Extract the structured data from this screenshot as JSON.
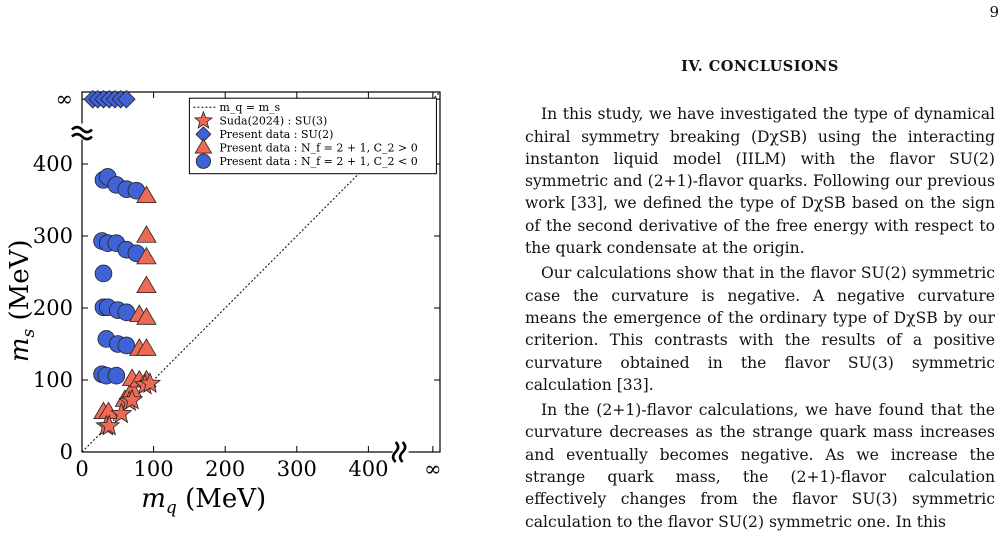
{
  "page_number": "9",
  "section_heading": "IV.   CONCLUSIONS",
  "paragraphs": [
    "In this study, we have investigated the type of dynamical chiral symmetry breaking (DχSB) using the interacting instanton liquid model (IILM) with the flavor SU(2) symmetric and (2+1)-flavor quarks. Following our previous work [33], we defined the type of DχSB based on the sign of the second derivative of the free energy with respect to the quark condensate at the origin.",
    "Our calculations show that in the flavor SU(2) symmetric case the curvature is negative. A negative curvature means the emergence of the ordinary type of DχSB by our criterion. This contrasts with the results of a positive curvature obtained in the flavor SU(3) symmetric calculation [33].",
    "In the (2+1)-flavor calculations, we have found that the curvature decreases as the strange quark mass increases and eventually becomes negative. As we increase the strange quark mass, the (2+1)-flavor calculation effectively changes from the flavor SU(3) symmetric calculation to the flavor SU(2) symmetric one. In this"
  ],
  "chart_data": {
    "type": "scatter",
    "xlabel": "m_q (MeV)",
    "ylabel": "m_s (MeV)",
    "xlim": [
      0,
      500
    ],
    "ylim": [
      0,
      500
    ],
    "axis_break_note": "broken axes; infinity shown beyond the break",
    "x_ticks": [
      {
        "value": 0,
        "label": "0"
      },
      {
        "value": 100,
        "label": "100"
      },
      {
        "value": 200,
        "label": "200"
      },
      {
        "value": 300,
        "label": "300"
      },
      {
        "value": 400,
        "label": "400"
      },
      {
        "value": 490,
        "label": "∞"
      }
    ],
    "y_ticks": [
      {
        "value": 0,
        "label": "0"
      },
      {
        "value": 100,
        "label": "100"
      },
      {
        "value": 200,
        "label": "200"
      },
      {
        "value": 300,
        "label": "300"
      },
      {
        "value": 400,
        "label": "400"
      },
      {
        "value": 490,
        "label": "∞"
      }
    ],
    "legend_position": "top-right",
    "guide_line": {
      "name": "m_q = m_s",
      "points": [
        [
          0,
          0
        ],
        [
          500,
          500
        ]
      ],
      "color": "#000000"
    },
    "series": [
      {
        "name": "Suda(2024) : SU(3)",
        "marker": "star",
        "color": "#ef6a55",
        "points": [
          [
            34,
            36
          ],
          [
            38,
            36
          ],
          [
            55,
            53
          ],
          [
            66,
            70
          ],
          [
            70,
            72
          ],
          [
            88,
            93
          ],
          [
            95,
            95
          ]
        ]
      },
      {
        "name": "Present data : SU(2)",
        "marker": "diamond",
        "color": "#3f63d6",
        "points": [
          [
            15,
            490
          ],
          [
            22,
            490
          ],
          [
            30,
            490
          ],
          [
            38,
            490
          ],
          [
            46,
            490
          ],
          [
            54,
            490
          ],
          [
            62,
            490
          ]
        ]
      },
      {
        "name": "Present data : N_f = 2 + 1, C_2 > 0",
        "marker": "triangle",
        "color": "#ef6a55",
        "points": [
          [
            30,
            55
          ],
          [
            37,
            55
          ],
          [
            60,
            72
          ],
          [
            70,
            85
          ],
          [
            70,
            101
          ],
          [
            80,
            99
          ],
          [
            90,
            99
          ],
          [
            80,
            143
          ],
          [
            90,
            143
          ],
          [
            80,
            190
          ],
          [
            90,
            186
          ],
          [
            90,
            230
          ],
          [
            90,
            270
          ],
          [
            90,
            300
          ],
          [
            90,
            355
          ]
        ]
      },
      {
        "name": "Present data : N_f = 2 + 1, C_2 < 0",
        "marker": "circle",
        "color": "#3f63d6",
        "points": [
          [
            28,
            108
          ],
          [
            34,
            106
          ],
          [
            48,
            106
          ],
          [
            34,
            157
          ],
          [
            50,
            150
          ],
          [
            62,
            148
          ],
          [
            30,
            201
          ],
          [
            36,
            201
          ],
          [
            50,
            197
          ],
          [
            62,
            194
          ],
          [
            30,
            248
          ],
          [
            28,
            293
          ],
          [
            36,
            290
          ],
          [
            48,
            290
          ],
          [
            62,
            281
          ],
          [
            76,
            276
          ],
          [
            30,
            378
          ],
          [
            36,
            382
          ],
          [
            48,
            371
          ],
          [
            62,
            365
          ],
          [
            76,
            363
          ]
        ]
      }
    ]
  }
}
